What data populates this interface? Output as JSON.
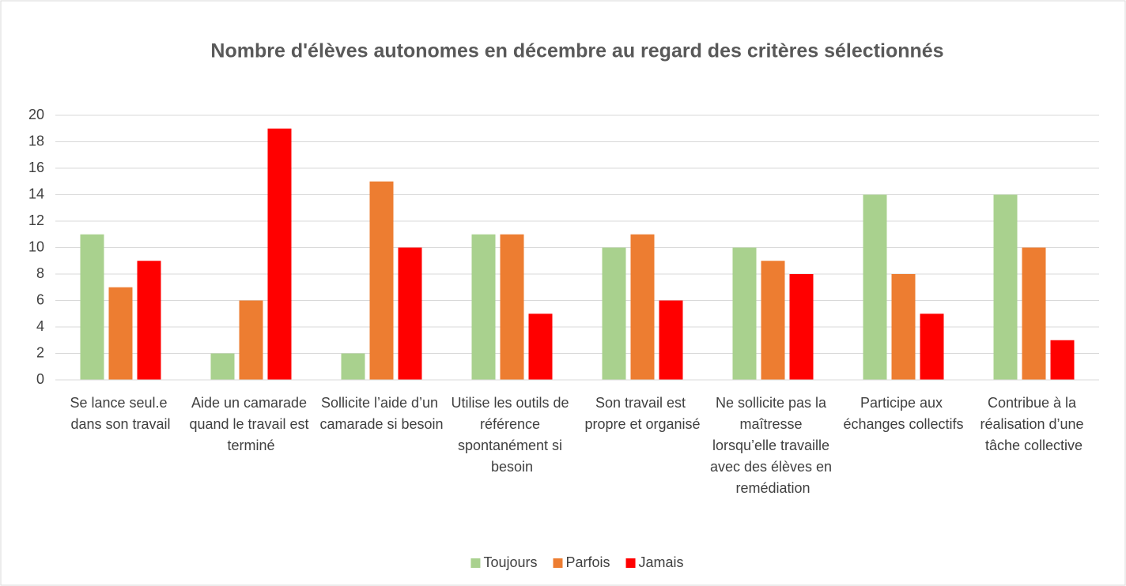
{
  "chart_data": {
    "type": "bar",
    "title": "Nombre d'élèves autonomes en décembre au regard des critères sélectionnés",
    "categories": [
      "Se lance seul.e dans son travail",
      "Aide un camarade quand le travail est terminé",
      "Sollicite l’aide d’un camarade si besoin",
      "Utilise les outils de référence spontanément si besoin",
      "Son travail est propre et organisé",
      "Ne sollicite pas la maîtresse lorsqu’elle travaille avec des élèves en remédiation",
      "Participe aux échanges collectifs",
      "Contribue à la réalisation d’une tâche collective"
    ],
    "series": [
      {
        "name": "Toujours",
        "color": "#a9d18e",
        "values": [
          11,
          2,
          2,
          11,
          10,
          10,
          14,
          14
        ]
      },
      {
        "name": "Parfois",
        "color": "#ed7d31",
        "values": [
          7,
          6,
          15,
          11,
          11,
          9,
          8,
          10
        ]
      },
      {
        "name": "Jamais",
        "color": "#ff0000",
        "values": [
          9,
          19,
          10,
          5,
          6,
          8,
          5,
          3
        ]
      }
    ],
    "ylim": [
      0,
      20
    ],
    "yticks": [
      0,
      2,
      4,
      6,
      8,
      10,
      12,
      14,
      16,
      18,
      20
    ],
    "grid": true,
    "legend": "bottom"
  }
}
